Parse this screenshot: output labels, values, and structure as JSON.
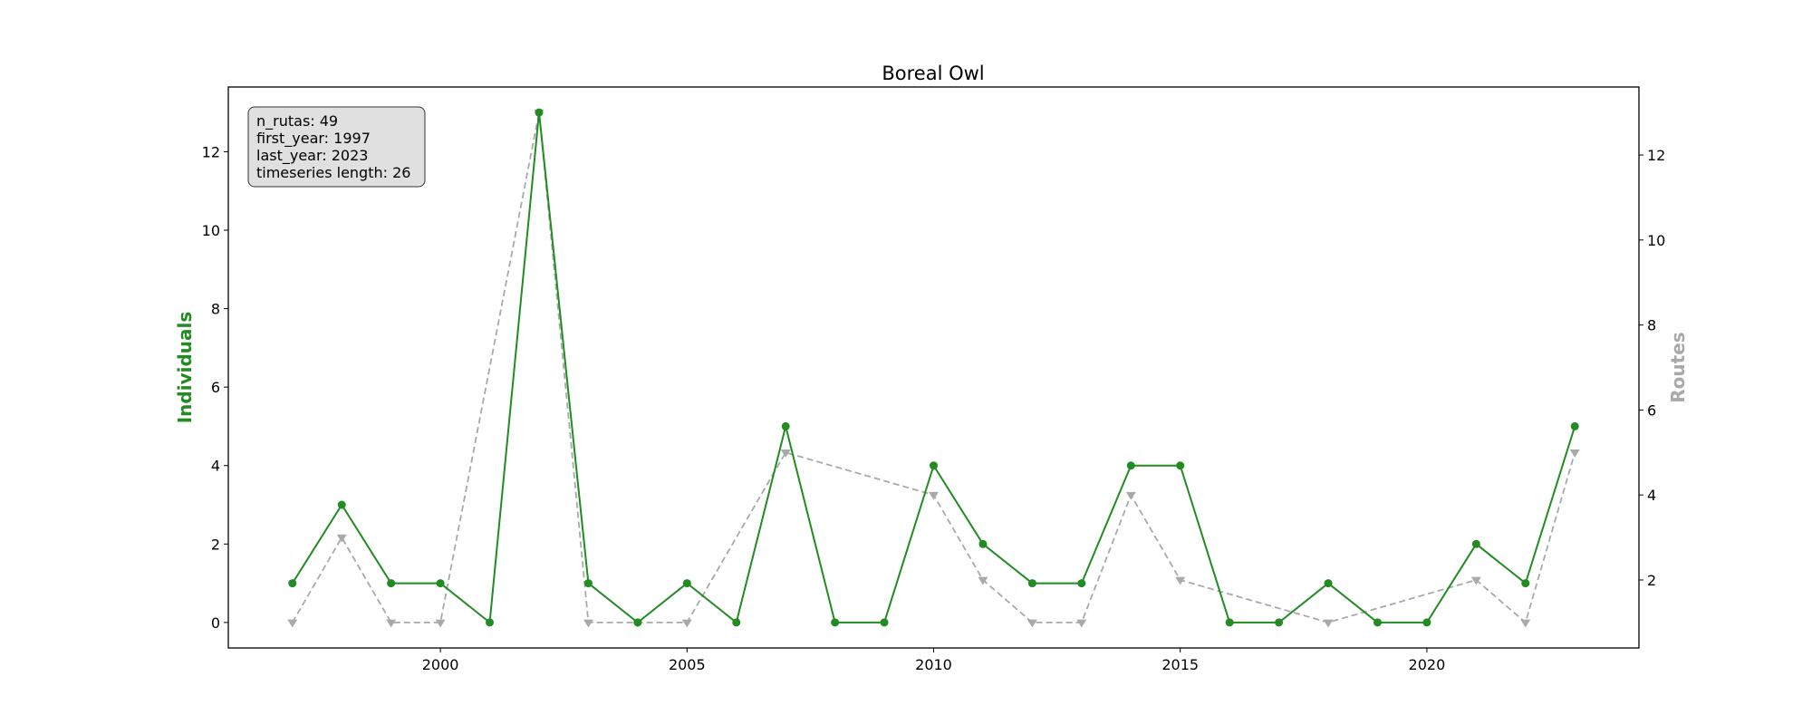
{
  "chart_data": {
    "type": "line",
    "title": "Boreal Owl",
    "xlabel": "",
    "ylabel_left": "Individuals",
    "ylabel_right": "Routes",
    "xlim": [
      1995.7,
      2024.3
    ],
    "ylim_left": [
      -0.65,
      13.65
    ],
    "ylim_right": [
      0.4,
      13.6
    ],
    "x_ticks": [
      2000,
      2005,
      2010,
      2015,
      2020
    ],
    "y_ticks_left": [
      0,
      2,
      4,
      6,
      8,
      10,
      12
    ],
    "y_ticks_right": [
      2,
      4,
      6,
      8,
      10,
      12
    ],
    "grid": false,
    "series": [
      {
        "name": "Individuals",
        "axis": "left",
        "color": "#228b22",
        "marker": "circle",
        "line_style": "solid",
        "x": [
          1997,
          1998,
          1999,
          2000,
          2001,
          2002,
          2003,
          2004,
          2005,
          2006,
          2007,
          2008,
          2009,
          2010,
          2011,
          2012,
          2013,
          2014,
          2015,
          2016,
          2017,
          2018,
          2019,
          2020,
          2021,
          2022,
          2023
        ],
        "y": [
          1,
          3,
          1,
          1,
          0,
          13,
          1,
          0,
          1,
          0,
          5,
          0,
          0,
          4,
          2,
          1,
          1,
          4,
          4,
          0,
          0,
          1,
          0,
          0,
          2,
          1,
          5
        ]
      },
      {
        "name": "Routes",
        "axis": "right",
        "color": "#a9a9a9",
        "marker": "triangle-down",
        "line_style": "dashed",
        "x": [
          1997,
          1998,
          1999,
          2000,
          2002,
          2003,
          2004,
          2005,
          2007,
          2010,
          2011,
          2012,
          2013,
          2014,
          2015,
          2018,
          2021,
          2022,
          2023
        ],
        "y": [
          1,
          3,
          1,
          1,
          13,
          1,
          1,
          1,
          5,
          4,
          2,
          1,
          1,
          4,
          2,
          1,
          2,
          1,
          5
        ]
      }
    ],
    "stats_box": {
      "lines": [
        "n_rutas: 49",
        "first_year: 1997",
        "last_year: 2023",
        "timeseries length: 26"
      ],
      "placement": "top-left"
    }
  }
}
